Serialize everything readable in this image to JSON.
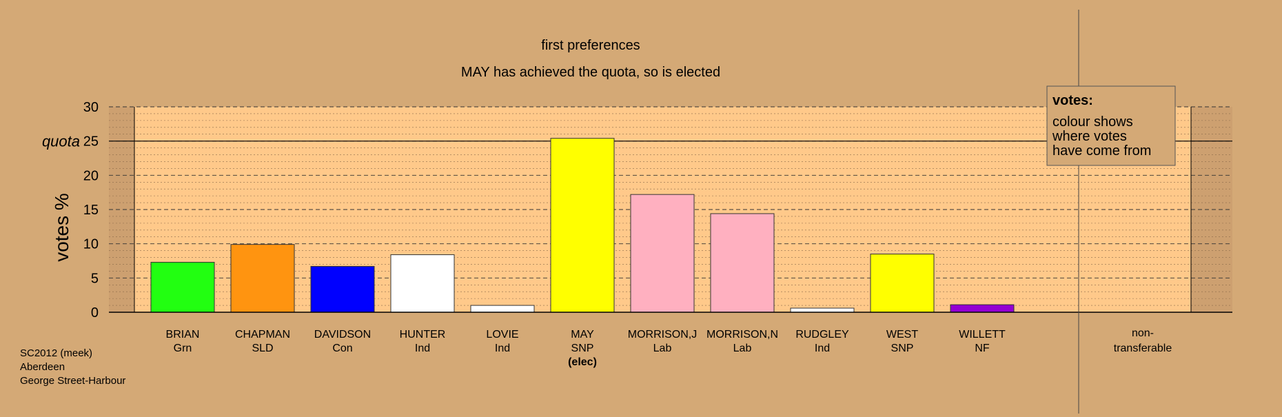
{
  "chart_data": {
    "type": "bar",
    "title": "first preferences",
    "subtitle": "MAY has achieved the quota, so is elected",
    "ylabel": "votes %",
    "ylim": [
      0,
      30
    ],
    "yticks": [
      0,
      5,
      10,
      15,
      20,
      25,
      30
    ],
    "quota": 25,
    "quota_label": "quota",
    "grid": true,
    "categories": [
      {
        "name": "BRIAN",
        "party": "Grn",
        "value": 7.3,
        "color": "#22ff11",
        "elected": false
      },
      {
        "name": "CHAPMAN",
        "party": "SLD",
        "value": 9.9,
        "color": "#ff9410",
        "elected": false
      },
      {
        "name": "DAVIDSON",
        "party": "Con",
        "value": 6.7,
        "color": "#0000ff",
        "elected": false
      },
      {
        "name": "HUNTER",
        "party": "Ind",
        "value": 8.4,
        "color": "#ffffff",
        "elected": false
      },
      {
        "name": "LOVIE",
        "party": "Ind",
        "value": 1.0,
        "color": "#ffffff",
        "elected": false
      },
      {
        "name": "MAY",
        "party": "SNP",
        "value": 25.4,
        "color": "#ffff00",
        "elected": true
      },
      {
        "name": "MORRISON,J",
        "party": "Lab",
        "value": 17.2,
        "color": "#ffb0c0",
        "elected": false
      },
      {
        "name": "MORRISON,N",
        "party": "Lab",
        "value": 14.4,
        "color": "#ffb0c0",
        "elected": false
      },
      {
        "name": "RUDGLEY",
        "party": "Ind",
        "value": 0.6,
        "color": "#ffffff",
        "elected": false
      },
      {
        "name": "WEST",
        "party": "SNP",
        "value": 8.5,
        "color": "#ffff00",
        "elected": false
      },
      {
        "name": "WILLETT",
        "party": "NF",
        "value": 1.1,
        "color": "#9400d3",
        "elected": false
      }
    ],
    "elected_marker": "(elec)",
    "nontransferable": {
      "line1": "non-",
      "line2": "transferable",
      "value": 0
    },
    "legend": {
      "title": "votes:",
      "lines": [
        "colour shows",
        "where votes",
        "have come from"
      ],
      "placement": "top-right"
    }
  },
  "footer": {
    "line1": "SC2012 (meek)",
    "line2": "Aberdeen",
    "line3": "George Street-Harbour"
  }
}
